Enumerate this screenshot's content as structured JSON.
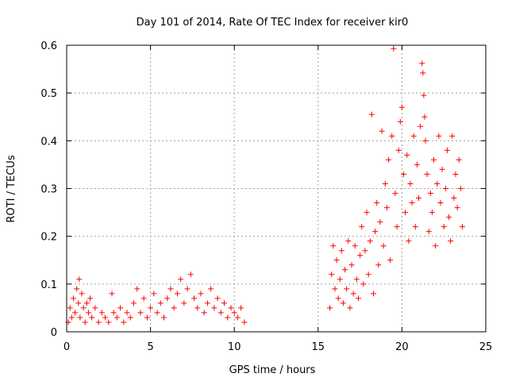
{
  "chart_data": {
    "type": "scatter",
    "title": "Day 101 of 2014, Rate Of TEC Index for receiver kir0",
    "xlabel": "GPS time / hours",
    "ylabel": "ROTI / TECUs",
    "xlim": [
      0,
      25
    ],
    "ylim": [
      0,
      0.6
    ],
    "xticks": [
      0,
      5,
      10,
      15,
      20,
      25
    ],
    "yticks": [
      0,
      0.1,
      0.2,
      0.3,
      0.4,
      0.5,
      0.6
    ],
    "xtick_labels": [
      "0",
      "5",
      "10",
      "15",
      "20",
      "25"
    ],
    "ytick_labels": [
      "0",
      "0.1",
      "0.2",
      "0.3",
      "0.4",
      "0.5",
      "0.6"
    ],
    "grid": true,
    "marker": "+",
    "color": "#ff0000",
    "series": [
      {
        "name": "ROTI",
        "points": [
          [
            0.1,
            0.02
          ],
          [
            0.2,
            0.05
          ],
          [
            0.3,
            0.03
          ],
          [
            0.4,
            0.07
          ],
          [
            0.5,
            0.04
          ],
          [
            0.6,
            0.09
          ],
          [
            0.7,
            0.06
          ],
          [
            0.75,
            0.11
          ],
          [
            0.8,
            0.03
          ],
          [
            0.9,
            0.08
          ],
          [
            1.0,
            0.05
          ],
          [
            1.1,
            0.02
          ],
          [
            1.2,
            0.06
          ],
          [
            1.3,
            0.04
          ],
          [
            1.4,
            0.07
          ],
          [
            1.5,
            0.03
          ],
          [
            1.7,
            0.05
          ],
          [
            1.9,
            0.02
          ],
          [
            2.1,
            0.04
          ],
          [
            2.3,
            0.03
          ],
          [
            2.5,
            0.02
          ],
          [
            2.7,
            0.08
          ],
          [
            2.8,
            0.04
          ],
          [
            3.0,
            0.03
          ],
          [
            3.2,
            0.05
          ],
          [
            3.4,
            0.02
          ],
          [
            3.6,
            0.04
          ],
          [
            3.8,
            0.03
          ],
          [
            4.0,
            0.06
          ],
          [
            4.2,
            0.09
          ],
          [
            4.4,
            0.04
          ],
          [
            4.6,
            0.07
          ],
          [
            4.8,
            0.03
          ],
          [
            5.0,
            0.05
          ],
          [
            5.2,
            0.08
          ],
          [
            5.4,
            0.04
          ],
          [
            5.6,
            0.06
          ],
          [
            5.8,
            0.03
          ],
          [
            6.0,
            0.07
          ],
          [
            6.2,
            0.09
          ],
          [
            6.4,
            0.05
          ],
          [
            6.6,
            0.08
          ],
          [
            6.8,
            0.11
          ],
          [
            7.0,
            0.06
          ],
          [
            7.2,
            0.09
          ],
          [
            7.4,
            0.12
          ],
          [
            7.6,
            0.07
          ],
          [
            7.8,
            0.05
          ],
          [
            8.0,
            0.08
          ],
          [
            8.2,
            0.04
          ],
          [
            8.4,
            0.06
          ],
          [
            8.6,
            0.09
          ],
          [
            8.8,
            0.05
          ],
          [
            9.0,
            0.07
          ],
          [
            9.2,
            0.04
          ],
          [
            9.4,
            0.06
          ],
          [
            9.6,
            0.03
          ],
          [
            9.8,
            0.05
          ],
          [
            10.0,
            0.04
          ],
          [
            10.2,
            0.03
          ],
          [
            10.4,
            0.05
          ],
          [
            10.6,
            0.02
          ],
          [
            15.7,
            0.05
          ],
          [
            15.8,
            0.12
          ],
          [
            15.9,
            0.18
          ],
          [
            16.0,
            0.09
          ],
          [
            16.1,
            0.15
          ],
          [
            16.2,
            0.07
          ],
          [
            16.3,
            0.11
          ],
          [
            16.4,
            0.17
          ],
          [
            16.5,
            0.06
          ],
          [
            16.6,
            0.13
          ],
          [
            16.7,
            0.09
          ],
          [
            16.8,
            0.19
          ],
          [
            16.9,
            0.05
          ],
          [
            17.0,
            0.14
          ],
          [
            17.1,
            0.08
          ],
          [
            17.2,
            0.18
          ],
          [
            17.3,
            0.11
          ],
          [
            17.4,
            0.07
          ],
          [
            17.5,
            0.16
          ],
          [
            17.6,
            0.22
          ],
          [
            17.7,
            0.1
          ],
          [
            17.8,
            0.17
          ],
          [
            17.9,
            0.25
          ],
          [
            18.0,
            0.12
          ],
          [
            18.1,
            0.19
          ],
          [
            18.2,
            0.455
          ],
          [
            18.3,
            0.08
          ],
          [
            18.4,
            0.21
          ],
          [
            18.5,
            0.27
          ],
          [
            18.6,
            0.14
          ],
          [
            18.7,
            0.23
          ],
          [
            18.8,
            0.42
          ],
          [
            18.9,
            0.18
          ],
          [
            19.0,
            0.31
          ],
          [
            19.1,
            0.26
          ],
          [
            19.2,
            0.36
          ],
          [
            19.3,
            0.15
          ],
          [
            19.4,
            0.41
          ],
          [
            19.5,
            0.593
          ],
          [
            19.6,
            0.29
          ],
          [
            19.7,
            0.22
          ],
          [
            19.8,
            0.38
          ],
          [
            19.9,
            0.44
          ],
          [
            20.0,
            0.47
          ],
          [
            20.1,
            0.33
          ],
          [
            20.2,
            0.25
          ],
          [
            20.3,
            0.37
          ],
          [
            20.4,
            0.19
          ],
          [
            20.5,
            0.31
          ],
          [
            20.6,
            0.27
          ],
          [
            20.7,
            0.41
          ],
          [
            20.8,
            0.22
          ],
          [
            20.9,
            0.35
          ],
          [
            21.0,
            0.28
          ],
          [
            21.1,
            0.43
          ],
          [
            21.2,
            0.562
          ],
          [
            21.25,
            0.542
          ],
          [
            21.3,
            0.495
          ],
          [
            21.35,
            0.45
          ],
          [
            21.4,
            0.4
          ],
          [
            21.5,
            0.33
          ],
          [
            21.6,
            0.21
          ],
          [
            21.7,
            0.29
          ],
          [
            21.8,
            0.25
          ],
          [
            21.9,
            0.36
          ],
          [
            22.0,
            0.18
          ],
          [
            22.1,
            0.31
          ],
          [
            22.2,
            0.41
          ],
          [
            22.3,
            0.27
          ],
          [
            22.4,
            0.34
          ],
          [
            22.5,
            0.22
          ],
          [
            22.6,
            0.3
          ],
          [
            22.7,
            0.38
          ],
          [
            22.8,
            0.24
          ],
          [
            22.9,
            0.19
          ],
          [
            23.0,
            0.41
          ],
          [
            23.1,
            0.28
          ],
          [
            23.2,
            0.33
          ],
          [
            23.3,
            0.26
          ],
          [
            23.4,
            0.36
          ],
          [
            23.5,
            0.3
          ],
          [
            23.6,
            0.22
          ]
        ]
      }
    ]
  }
}
